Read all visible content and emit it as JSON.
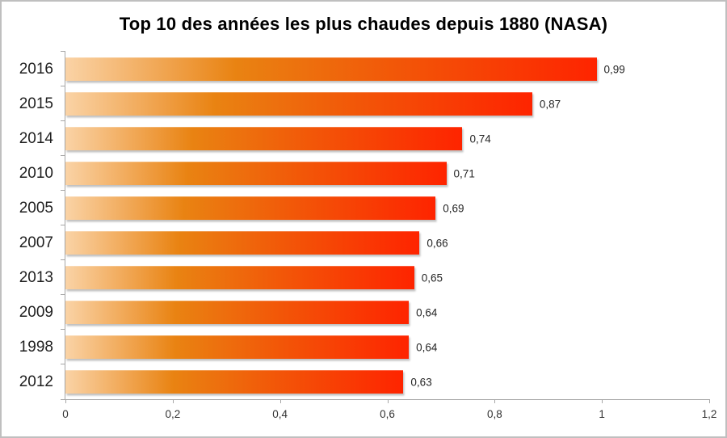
{
  "chart_data": {
    "type": "bar",
    "orientation": "horizontal",
    "title": "Top 10 des années les plus chaudes depuis 1880 (NASA)",
    "xlabel": "",
    "ylabel": "",
    "categories": [
      "2016",
      "2015",
      "2014",
      "2010",
      "2005",
      "2007",
      "2013",
      "2009",
      "1998",
      "2012"
    ],
    "values": [
      0.99,
      0.87,
      0.74,
      0.71,
      0.69,
      0.66,
      0.65,
      0.64,
      0.64,
      0.63
    ],
    "value_labels": [
      "0,99",
      "0,87",
      "0,74",
      "0,71",
      "0,69",
      "0,66",
      "0,65",
      "0,64",
      "0,64",
      "0,63"
    ],
    "xlim": [
      0,
      1.2
    ],
    "x_ticks": [
      0,
      0.2,
      0.4,
      0.6,
      0.8,
      1.0,
      1.2
    ],
    "x_tick_labels": [
      "0",
      "0,2",
      "0,4",
      "0,6",
      "0,8",
      "1",
      "1,2"
    ],
    "grid": false,
    "legend": false,
    "colors": {
      "bar_gradient_stops": [
        "#FAD3A6",
        "#E98312",
        "#F25708",
        "#FE2400"
      ],
      "bar_gradient_positions": [
        0,
        32,
        62,
        100
      ],
      "axis_line": "#A6A6A6",
      "title_text": "#000000",
      "category_text": "#1F1F1F",
      "value_text": "#262626",
      "tick_text": "#333333",
      "background": "#FFFFFF",
      "frame_border": "#BFBFBF"
    }
  }
}
